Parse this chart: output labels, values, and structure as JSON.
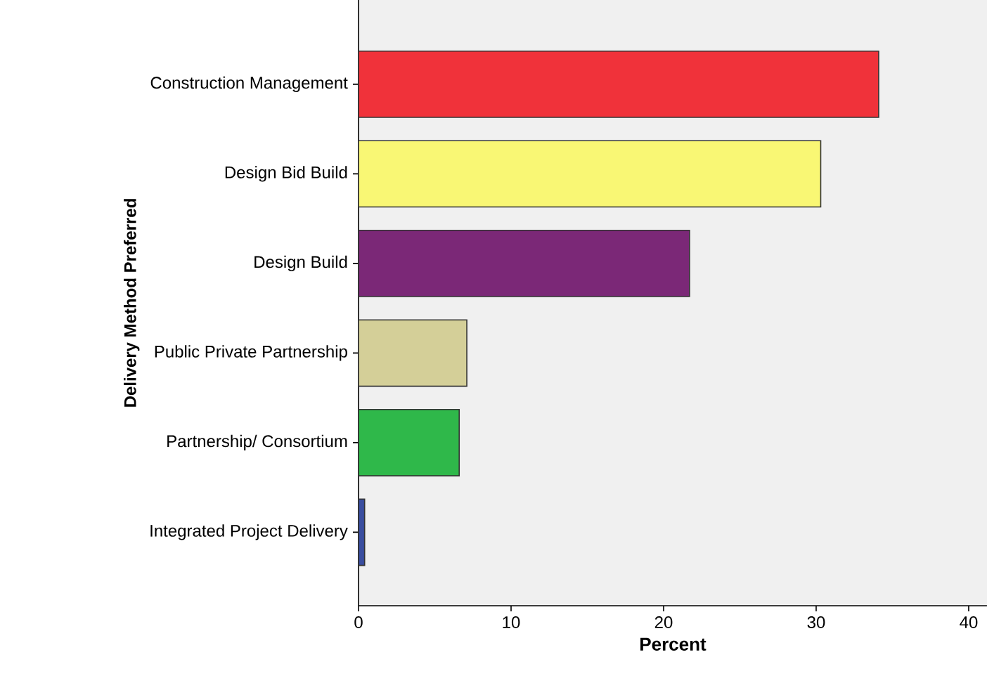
{
  "chart_data": {
    "type": "bar",
    "orientation": "horizontal",
    "xlabel": "Percent",
    "ylabel": "Delivery Method Preferred",
    "categories": [
      "Construction Management",
      "Design Bid Build",
      "Design Build",
      "Public Private Partnership",
      "Partnership/ Consortium",
      "Integrated Project Delivery"
    ],
    "values": [
      34.1,
      30.3,
      21.7,
      7.1,
      6.6,
      0.4
    ],
    "colors": [
      "#f0323a",
      "#f9f774",
      "#7b2877",
      "#d4cf98",
      "#2fb84a",
      "#3a4ea0"
    ],
    "xlim": [
      0,
      41.2
    ],
    "xticks": [
      0,
      10,
      20,
      30,
      40
    ]
  }
}
